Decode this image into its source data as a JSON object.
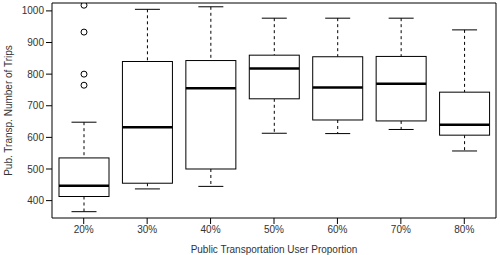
{
  "chart_data": {
    "type": "box",
    "x_label": "Public Transportation User Proportion",
    "y_label": "Pub. Transp. Number of Trips",
    "categories": [
      "20%",
      "30%",
      "40%",
      "50%",
      "60%",
      "70%",
      "80%"
    ],
    "boxes": [
      {
        "low": 365,
        "q1": 413,
        "median": 447,
        "q3": 535,
        "high": 648,
        "outliers": [
          765,
          800,
          933,
          1018
        ]
      },
      {
        "low": 437,
        "q1": 455,
        "median": 632,
        "q3": 840,
        "high": 1005,
        "outliers": []
      },
      {
        "low": 445,
        "q1": 500,
        "median": 755,
        "q3": 843,
        "high": 1013,
        "outliers": []
      },
      {
        "low": 613,
        "q1": 722,
        "median": 818,
        "q3": 860,
        "high": 977,
        "outliers": []
      },
      {
        "low": 612,
        "q1": 655,
        "median": 758,
        "q3": 855,
        "high": 977,
        "outliers": []
      },
      {
        "low": 625,
        "q1": 652,
        "median": 770,
        "q3": 856,
        "high": 977,
        "outliers": []
      },
      {
        "low": 557,
        "q1": 607,
        "median": 640,
        "q3": 743,
        "high": 940,
        "outliers": []
      }
    ],
    "ylim": [
      345,
      1025
    ],
    "yticks": [
      400,
      500,
      600,
      700,
      800,
      900,
      1000
    ],
    "grid": false,
    "color": "#000000"
  }
}
